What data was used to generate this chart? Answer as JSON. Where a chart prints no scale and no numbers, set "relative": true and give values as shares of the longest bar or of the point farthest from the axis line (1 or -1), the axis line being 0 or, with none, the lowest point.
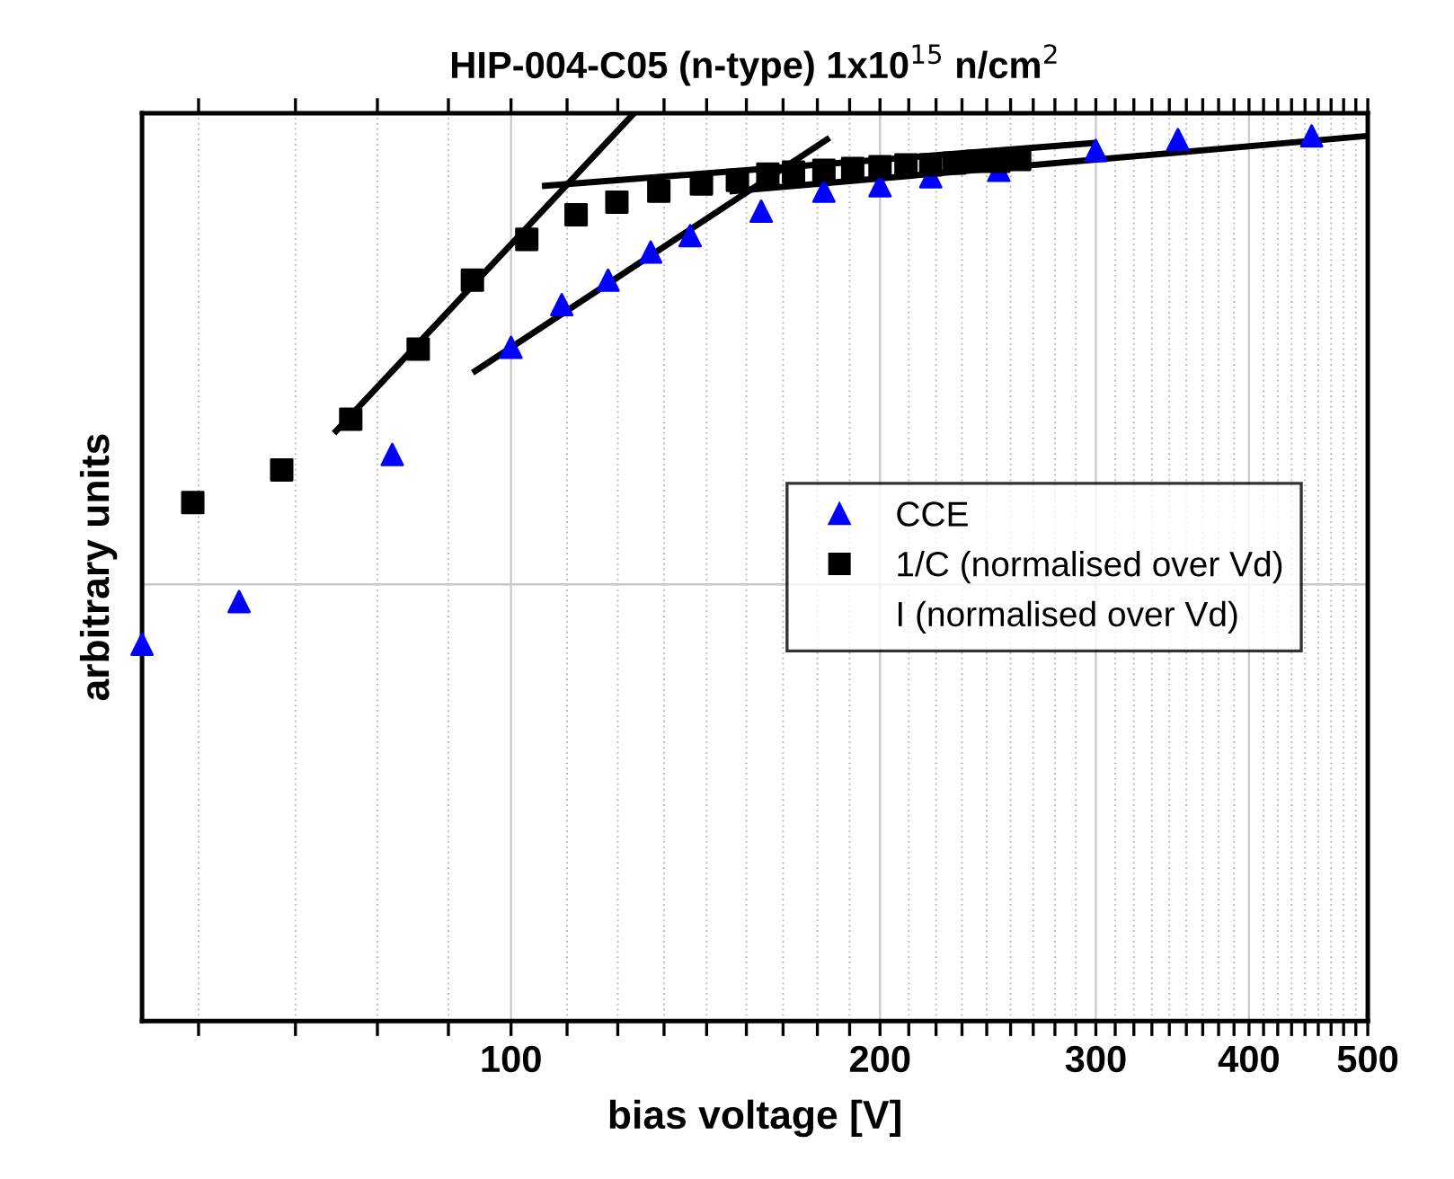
{
  "chart_data": {
    "type": "scatter",
    "title": "HIP-004-C05 (n-type) 1x10$^{15}$ n/cm$^{2}$",
    "xlabel": "bias voltage [V]",
    "ylabel": "arbitrary units",
    "relative": true,
    "log": "x",
    "xlim": [
      50,
      500
    ],
    "xticks": [
      {
        "value": 55.6,
        "label": null
      },
      {
        "value": 66.7,
        "label": null
      },
      {
        "value": 77.8,
        "label": null
      },
      {
        "value": 88.9,
        "label": null
      },
      100,
      {
        "value": 111.1,
        "label": null
      },
      {
        "value": 122.2,
        "label": null
      },
      {
        "value": 133.3,
        "label": null
      },
      {
        "value": 144.4,
        "label": null
      },
      {
        "value": 155.6,
        "label": null
      },
      {
        "value": 166.7,
        "label": null
      },
      {
        "value": 177.8,
        "label": null
      },
      {
        "value": 188.9,
        "label": null
      },
      200,
      {
        "value": 211.1,
        "label": null
      },
      {
        "value": 222.2,
        "label": null
      },
      {
        "value": 233.3,
        "label": null
      },
      {
        "value": 244.4,
        "label": null
      },
      {
        "value": 255.6,
        "label": null
      },
      {
        "value": 266.7,
        "label": null
      },
      {
        "value": 277.8,
        "label": null
      },
      {
        "value": 288.9,
        "label": null
      },
      300,
      {
        "value": 311.1,
        "label": null
      },
      {
        "value": 322.2,
        "label": null
      },
      {
        "value": 333.3,
        "label": null
      },
      {
        "value": 344.4,
        "label": null
      },
      {
        "value": 355.6,
        "label": null
      },
      {
        "value": 366.7,
        "label": null
      },
      {
        "value": 377.8,
        "label": null
      },
      {
        "value": 388.9,
        "label": null
      },
      400,
      {
        "value": 411.1,
        "label": null
      },
      {
        "value": 422.2,
        "label": null
      },
      {
        "value": 433.3,
        "label": null
      },
      {
        "value": 444.4,
        "label": null
      },
      {
        "value": 455.6,
        "label": null
      },
      {
        "value": 466.7,
        "label": null
      },
      {
        "value": 477.8,
        "label": null
      },
      {
        "value": 488.9,
        "label": null
      },
      500
    ],
    "grid": "x",
    "legend": "center right",
    "ref_lines": [
      {
        "axis": "y",
        "value": 0.481,
        "color": "#c8c8c8"
      }
    ],
    "series": [
      {
        "name": "CCE",
        "marker": "triangle",
        "color": "#0000ff",
        "x": [
          50,
          60,
          80,
          100,
          110,
          120,
          130,
          140,
          160,
          180,
          200,
          220,
          250,
          300,
          350,
          450
        ],
        "values": [
          0.415,
          0.462,
          0.624,
          0.742,
          0.789,
          0.816,
          0.847,
          0.865,
          0.892,
          0.914,
          0.92,
          0.93,
          0.937,
          0.959,
          0.971,
          0.975
        ]
      },
      {
        "name": "1/C (normalised over Vd)",
        "marker": "square",
        "color": "#000000",
        "x": [
          55,
          65,
          74,
          84,
          93,
          103,
          113,
          122,
          132,
          143,
          153,
          162,
          170,
          180,
          190,
          200,
          210,
          220,
          230,
          240,
          250,
          260
        ],
        "values": [
          0.571,
          0.607,
          0.663,
          0.74,
          0.816,
          0.861,
          0.888,
          0.902,
          0.914,
          0.922,
          0.926,
          0.933,
          0.935,
          0.937,
          0.939,
          0.941,
          0.943,
          0.943,
          0.945,
          0.947,
          0.947,
          0.949
        ]
      },
      {
        "name": "I (normalised over Vd)",
        "type": "line",
        "marker": "none",
        "color": "#000000"
      },
      {
        "type": "line",
        "marker": "none",
        "color": "#000000",
        "x": [
          72,
          126
        ],
        "values": [
          0.65,
          1.0
        ]
      },
      {
        "type": "line",
        "marker": "none",
        "color": "#000000",
        "x": [
          93.5,
          181
        ],
        "values": [
          0.716,
          0.971
        ]
      },
      {
        "type": "line",
        "marker": "none",
        "color": "#000000",
        "x": [
          106.6,
          298
        ],
        "values": [
          0.92,
          0.967
        ]
      },
      {
        "type": "line",
        "marker": "none",
        "color": "#000000",
        "x": [
          151.6,
          500
        ],
        "values": [
          0.914,
          0.975
        ]
      }
    ]
  }
}
